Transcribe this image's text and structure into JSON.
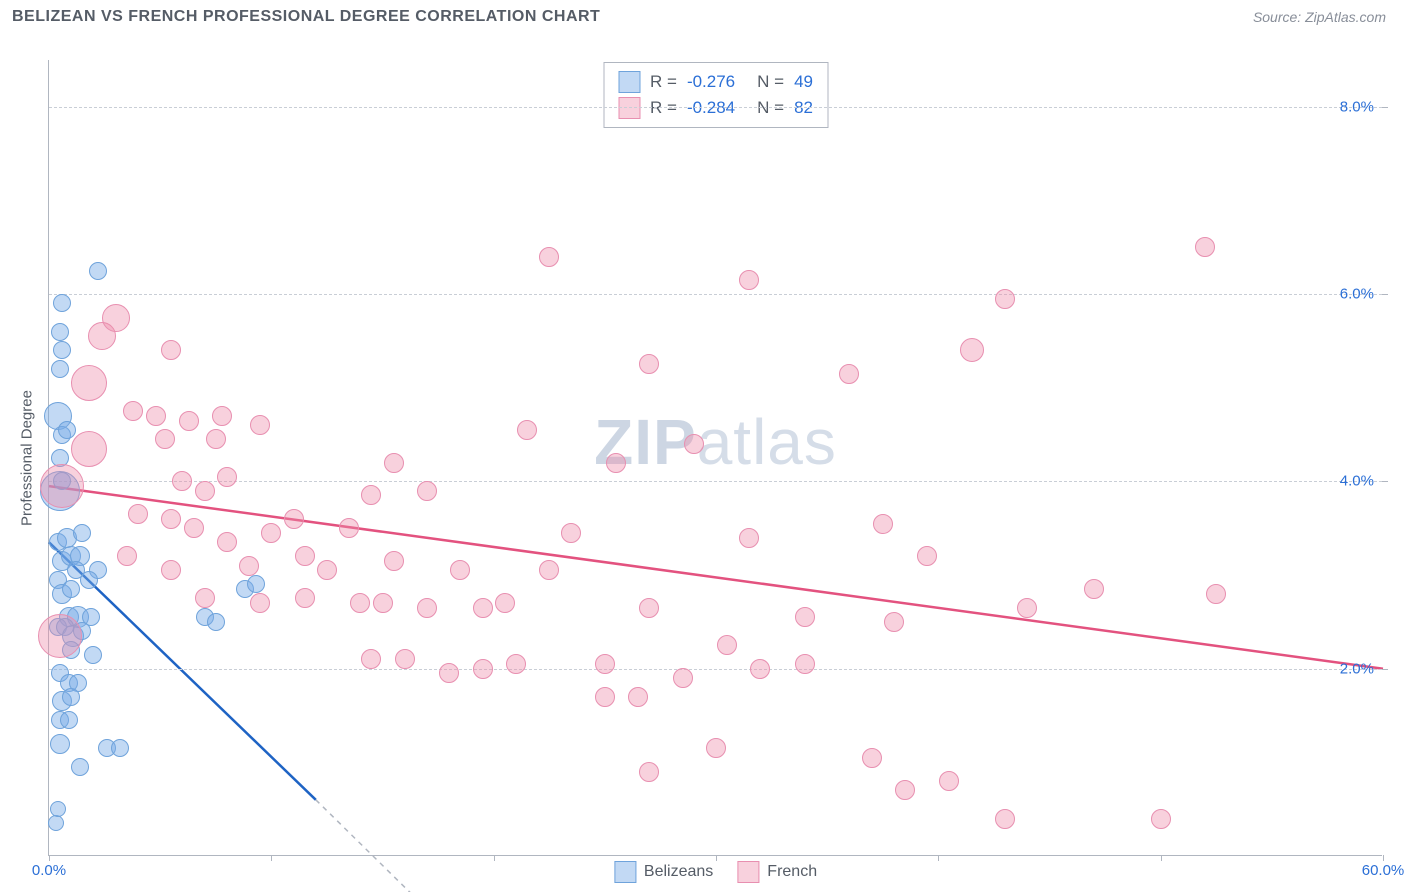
{
  "header": {
    "title": "BELIZEAN VS FRENCH PROFESSIONAL DEGREE CORRELATION CHART",
    "source": "Source: ZipAtlas.com"
  },
  "chart": {
    "type": "scatter",
    "ylabel": "Professional Degree",
    "watermark_bold": "ZIP",
    "watermark_rest": "atlas",
    "xlim": [
      0,
      60
    ],
    "ylim": [
      0,
      8.5
    ],
    "xticks": [
      {
        "v": 0,
        "label": "0.0%"
      },
      {
        "v": 10,
        "label": ""
      },
      {
        "v": 20,
        "label": ""
      },
      {
        "v": 30,
        "label": ""
      },
      {
        "v": 40,
        "label": ""
      },
      {
        "v": 50,
        "label": ""
      },
      {
        "v": 60,
        "label": "60.0%"
      }
    ],
    "yticks": [
      {
        "v": 2,
        "label": "2.0%"
      },
      {
        "v": 4,
        "label": "4.0%"
      },
      {
        "v": 6,
        "label": "6.0%"
      },
      {
        "v": 8,
        "label": "8.0%"
      }
    ],
    "series": [
      {
        "name": "Belizeans",
        "color_fill": "rgba(120,170,230,0.45)",
        "color_stroke": "#6fa3db",
        "trend": {
          "color": "#1e63c4",
          "x1": 0,
          "y1": 3.35,
          "x2": 12,
          "y2": 0.6,
          "dashed_ext_x2": 18,
          "dashed_ext_y2": -0.8
        },
        "points": [
          {
            "x": 0.3,
            "y": 0.35,
            "r": 8
          },
          {
            "x": 0.4,
            "y": 0.5,
            "r": 8
          },
          {
            "x": 0.5,
            "y": 3.9,
            "r": 20
          },
          {
            "x": 0.4,
            "y": 4.7,
            "r": 14
          },
          {
            "x": 0.6,
            "y": 4.5,
            "r": 9
          },
          {
            "x": 0.5,
            "y": 4.25,
            "r": 9
          },
          {
            "x": 0.6,
            "y": 4.0,
            "r": 9
          },
          {
            "x": 0.8,
            "y": 4.55,
            "r": 9
          },
          {
            "x": 0.5,
            "y": 5.2,
            "r": 9
          },
          {
            "x": 0.6,
            "y": 5.9,
            "r": 9
          },
          {
            "x": 0.5,
            "y": 5.6,
            "r": 9
          },
          {
            "x": 0.6,
            "y": 5.4,
            "r": 9
          },
          {
            "x": 2.2,
            "y": 6.25,
            "r": 9
          },
          {
            "x": 0.4,
            "y": 3.35,
            "r": 9
          },
          {
            "x": 0.8,
            "y": 3.4,
            "r": 10
          },
          {
            "x": 1.5,
            "y": 3.45,
            "r": 9
          },
          {
            "x": 0.6,
            "y": 3.15,
            "r": 10
          },
          {
            "x": 1.0,
            "y": 3.2,
            "r": 10
          },
          {
            "x": 1.4,
            "y": 3.2,
            "r": 10
          },
          {
            "x": 0.4,
            "y": 2.95,
            "r": 9
          },
          {
            "x": 1.2,
            "y": 3.05,
            "r": 9
          },
          {
            "x": 2.2,
            "y": 3.05,
            "r": 9
          },
          {
            "x": 0.6,
            "y": 2.8,
            "r": 10
          },
          {
            "x": 1.0,
            "y": 2.85,
            "r": 9
          },
          {
            "x": 1.8,
            "y": 2.95,
            "r": 9
          },
          {
            "x": 0.9,
            "y": 2.55,
            "r": 10
          },
          {
            "x": 1.3,
            "y": 2.55,
            "r": 11
          },
          {
            "x": 1.9,
            "y": 2.55,
            "r": 9
          },
          {
            "x": 0.4,
            "y": 2.45,
            "r": 9
          },
          {
            "x": 0.7,
            "y": 2.45,
            "r": 9
          },
          {
            "x": 1.1,
            "y": 2.35,
            "r": 11
          },
          {
            "x": 1.5,
            "y": 2.4,
            "r": 9
          },
          {
            "x": 1.0,
            "y": 2.2,
            "r": 9
          },
          {
            "x": 2.0,
            "y": 2.15,
            "r": 9
          },
          {
            "x": 0.5,
            "y": 1.95,
            "r": 9
          },
          {
            "x": 0.9,
            "y": 1.85,
            "r": 9
          },
          {
            "x": 1.3,
            "y": 1.85,
            "r": 9
          },
          {
            "x": 0.6,
            "y": 1.65,
            "r": 10
          },
          {
            "x": 1.0,
            "y": 1.7,
            "r": 9
          },
          {
            "x": 0.5,
            "y": 1.45,
            "r": 9
          },
          {
            "x": 0.9,
            "y": 1.45,
            "r": 9
          },
          {
            "x": 0.5,
            "y": 1.2,
            "r": 10
          },
          {
            "x": 2.6,
            "y": 1.15,
            "r": 9
          },
          {
            "x": 3.2,
            "y": 1.15,
            "r": 9
          },
          {
            "x": 1.4,
            "y": 0.95,
            "r": 9
          },
          {
            "x": 8.8,
            "y": 2.85,
            "r": 9
          },
          {
            "x": 9.3,
            "y": 2.9,
            "r": 9
          },
          {
            "x": 7.0,
            "y": 2.55,
            "r": 9
          },
          {
            "x": 7.5,
            "y": 2.5,
            "r": 9
          }
        ]
      },
      {
        "name": "French",
        "color_fill": "rgba(238,140,170,0.40)",
        "color_stroke": "#e88fb0",
        "trend": {
          "color": "#e3527f",
          "x1": 0,
          "y1": 3.95,
          "x2": 60,
          "y2": 2.0
        },
        "points": [
          {
            "x": 0.5,
            "y": 2.35,
            "r": 22
          },
          {
            "x": 0.6,
            "y": 3.95,
            "r": 22
          },
          {
            "x": 1.8,
            "y": 5.05,
            "r": 18
          },
          {
            "x": 2.4,
            "y": 5.55,
            "r": 14
          },
          {
            "x": 3.0,
            "y": 5.75,
            "r": 14
          },
          {
            "x": 1.8,
            "y": 4.35,
            "r": 18
          },
          {
            "x": 5.5,
            "y": 5.4,
            "r": 10
          },
          {
            "x": 3.8,
            "y": 4.75,
            "r": 10
          },
          {
            "x": 4.8,
            "y": 4.7,
            "r": 10
          },
          {
            "x": 6.3,
            "y": 4.65,
            "r": 10
          },
          {
            "x": 7.8,
            "y": 4.7,
            "r": 10
          },
          {
            "x": 5.2,
            "y": 4.45,
            "r": 10
          },
          {
            "x": 7.5,
            "y": 4.45,
            "r": 10
          },
          {
            "x": 9.5,
            "y": 4.6,
            "r": 10
          },
          {
            "x": 6.0,
            "y": 4.0,
            "r": 10
          },
          {
            "x": 8.0,
            "y": 4.05,
            "r": 10
          },
          {
            "x": 4.0,
            "y": 3.65,
            "r": 10
          },
          {
            "x": 5.5,
            "y": 3.6,
            "r": 10
          },
          {
            "x": 7.0,
            "y": 3.9,
            "r": 10
          },
          {
            "x": 11.0,
            "y": 3.6,
            "r": 10
          },
          {
            "x": 6.5,
            "y": 3.5,
            "r": 10
          },
          {
            "x": 8.0,
            "y": 3.35,
            "r": 10
          },
          {
            "x": 10.0,
            "y": 3.45,
            "r": 10
          },
          {
            "x": 3.5,
            "y": 3.2,
            "r": 10
          },
          {
            "x": 5.5,
            "y": 3.05,
            "r": 10
          },
          {
            "x": 9.0,
            "y": 3.1,
            "r": 10
          },
          {
            "x": 11.5,
            "y": 3.2,
            "r": 10
          },
          {
            "x": 12.5,
            "y": 3.05,
            "r": 10
          },
          {
            "x": 7.0,
            "y": 2.75,
            "r": 10
          },
          {
            "x": 9.5,
            "y": 2.7,
            "r": 10
          },
          {
            "x": 11.5,
            "y": 2.75,
            "r": 10
          },
          {
            "x": 14.0,
            "y": 2.7,
            "r": 10
          },
          {
            "x": 15.0,
            "y": 2.7,
            "r": 10
          },
          {
            "x": 13.5,
            "y": 3.5,
            "r": 10
          },
          {
            "x": 15.5,
            "y": 3.15,
            "r": 10
          },
          {
            "x": 14.5,
            "y": 3.85,
            "r": 10
          },
          {
            "x": 15.5,
            "y": 4.2,
            "r": 10
          },
          {
            "x": 17.0,
            "y": 3.9,
            "r": 10
          },
          {
            "x": 18.5,
            "y": 3.05,
            "r": 10
          },
          {
            "x": 17.0,
            "y": 2.65,
            "r": 10
          },
          {
            "x": 19.5,
            "y": 2.65,
            "r": 10
          },
          {
            "x": 16.0,
            "y": 2.1,
            "r": 10
          },
          {
            "x": 18.0,
            "y": 1.95,
            "r": 10
          },
          {
            "x": 19.5,
            "y": 2.0,
            "r": 10
          },
          {
            "x": 21.0,
            "y": 2.05,
            "r": 10
          },
          {
            "x": 20.5,
            "y": 2.7,
            "r": 10
          },
          {
            "x": 14.5,
            "y": 2.1,
            "r": 10
          },
          {
            "x": 21.5,
            "y": 4.55,
            "r": 10
          },
          {
            "x": 22.5,
            "y": 6.4,
            "r": 10
          },
          {
            "x": 22.5,
            "y": 3.05,
            "r": 10
          },
          {
            "x": 23.5,
            "y": 3.45,
            "r": 10
          },
          {
            "x": 25.0,
            "y": 2.05,
            "r": 10
          },
          {
            "x": 25.0,
            "y": 1.7,
            "r": 10
          },
          {
            "x": 25.5,
            "y": 4.2,
            "r": 10
          },
          {
            "x": 27.0,
            "y": 5.25,
            "r": 10
          },
          {
            "x": 27.0,
            "y": 2.65,
            "r": 10
          },
          {
            "x": 26.5,
            "y": 1.7,
            "r": 10
          },
          {
            "x": 27.0,
            "y": 0.9,
            "r": 10
          },
          {
            "x": 28.5,
            "y": 1.9,
            "r": 10
          },
          {
            "x": 29.0,
            "y": 4.4,
            "r": 10
          },
          {
            "x": 30.0,
            "y": 1.15,
            "r": 10
          },
          {
            "x": 30.5,
            "y": 2.25,
            "r": 10
          },
          {
            "x": 31.5,
            "y": 3.4,
            "r": 10
          },
          {
            "x": 31.5,
            "y": 6.15,
            "r": 10
          },
          {
            "x": 32.0,
            "y": 2.0,
            "r": 10
          },
          {
            "x": 34.0,
            "y": 2.05,
            "r": 10
          },
          {
            "x": 34.0,
            "y": 2.55,
            "r": 10
          },
          {
            "x": 36.0,
            "y": 5.15,
            "r": 10
          },
          {
            "x": 37.0,
            "y": 1.05,
            "r": 10
          },
          {
            "x": 37.5,
            "y": 3.55,
            "r": 10
          },
          {
            "x": 38.0,
            "y": 2.5,
            "r": 10
          },
          {
            "x": 38.5,
            "y": 0.7,
            "r": 10
          },
          {
            "x": 39.5,
            "y": 3.2,
            "r": 10
          },
          {
            "x": 40.5,
            "y": 0.8,
            "r": 10
          },
          {
            "x": 41.5,
            "y": 5.4,
            "r": 12
          },
          {
            "x": 43.0,
            "y": 0.4,
            "r": 10
          },
          {
            "x": 43.0,
            "y": 5.95,
            "r": 10
          },
          {
            "x": 44.0,
            "y": 2.65,
            "r": 10
          },
          {
            "x": 47.0,
            "y": 2.85,
            "r": 10
          },
          {
            "x": 50.0,
            "y": 0.4,
            "r": 10
          },
          {
            "x": 52.0,
            "y": 6.5,
            "r": 10
          },
          {
            "x": 52.5,
            "y": 2.8,
            "r": 10
          }
        ]
      }
    ],
    "legend_top": [
      {
        "swatch_fill": "rgba(120,170,230,0.45)",
        "swatch_stroke": "#6fa3db",
        "R": "-0.276",
        "N": "49"
      },
      {
        "swatch_fill": "rgba(238,140,170,0.40)",
        "swatch_stroke": "#e88fb0",
        "R": "-0.284",
        "N": "82"
      }
    ],
    "legend_bottom": [
      {
        "swatch_fill": "rgba(120,170,230,0.45)",
        "swatch_stroke": "#6fa3db",
        "label": "Belizeans"
      },
      {
        "swatch_fill": "rgba(238,140,170,0.40)",
        "swatch_stroke": "#e88fb0",
        "label": "French"
      }
    ]
  }
}
